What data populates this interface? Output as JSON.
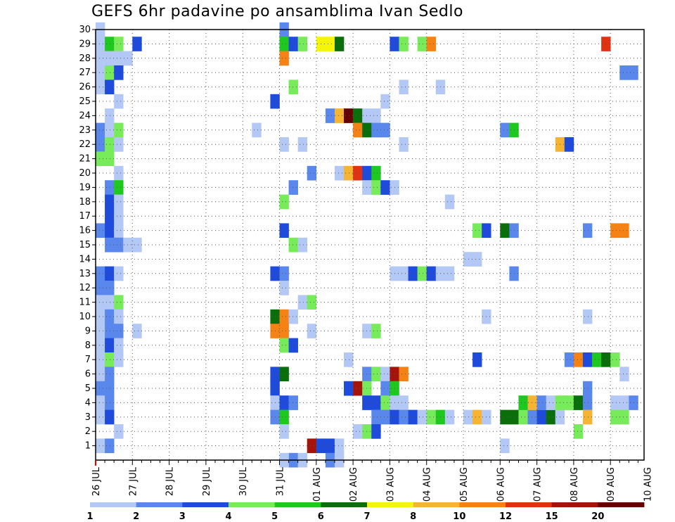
{
  "chart_data": {
    "type": "heatmap",
    "title": "GEFS 6hr padavine po ansamblima Ivan Sedlo",
    "x_tick_labels": [
      "26 JUL",
      "27 JUL",
      "28 JUL",
      "29 JUL",
      "30 JUL",
      "31 JUL",
      "01 AUG",
      "02 AUG",
      "03 AUG",
      "04 AUG",
      "05 AUG",
      "06 AUG",
      "07 AUG",
      "08 AUG",
      "09 AUG",
      "10 AUG"
    ],
    "x_range_days": [
      0,
      15.25
    ],
    "x_step_hours": 6,
    "y_ticks": [
      1,
      2,
      3,
      4,
      5,
      6,
      7,
      8,
      9,
      10,
      11,
      12,
      13,
      14,
      15,
      16,
      17,
      18,
      19,
      20,
      21,
      22,
      23,
      24,
      25,
      26,
      27,
      28,
      29,
      30
    ],
    "y_range": [
      0,
      30
    ],
    "grid": true,
    "colorbar": {
      "labels": [
        "1",
        "2",
        "3",
        "4",
        "5",
        "6",
        "7",
        "8",
        "10",
        "12",
        "15",
        "20"
      ],
      "bounds": [
        1,
        2,
        3,
        4,
        5,
        6,
        7,
        8,
        10,
        12,
        15,
        20
      ],
      "colors": [
        "#b4c8f5",
        "#5a87eb",
        "#1e4bdc",
        "#78eb5a",
        "#1ec81e",
        "#0a6e0a",
        "#f5f50a",
        "#f5b432",
        "#f58214",
        "#e13214",
        "#a5140a",
        "#640000"
      ]
    },
    "cells": [
      [
        0,
        30,
        0
      ],
      [
        0,
        29,
        0
      ],
      [
        1,
        29,
        4
      ],
      [
        2,
        29,
        3
      ],
      [
        3,
        28,
        0
      ],
      [
        4,
        29,
        2
      ],
      [
        0,
        28,
        0
      ],
      [
        1,
        28,
        0
      ],
      [
        2,
        28,
        0
      ],
      [
        0,
        27,
        0
      ],
      [
        1,
        27,
        3
      ],
      [
        2,
        27,
        2
      ],
      [
        0,
        26,
        0
      ],
      [
        1,
        26,
        2
      ],
      [
        2,
        25,
        0
      ],
      [
        1,
        24,
        0
      ],
      [
        0,
        23,
        1
      ],
      [
        1,
        23,
        0
      ],
      [
        2,
        23,
        3
      ],
      [
        0,
        22,
        1
      ],
      [
        1,
        22,
        3
      ],
      [
        2,
        22,
        0
      ],
      [
        0,
        21,
        3
      ],
      [
        1,
        21,
        3
      ],
      [
        2,
        20,
        0
      ],
      [
        1,
        19,
        1
      ],
      [
        2,
        19,
        4
      ],
      [
        1,
        18,
        2
      ],
      [
        2,
        18,
        0
      ],
      [
        1,
        17,
        2
      ],
      [
        2,
        17,
        0
      ],
      [
        0,
        16,
        1
      ],
      [
        1,
        16,
        2
      ],
      [
        2,
        16,
        0
      ],
      [
        1,
        15,
        1
      ],
      [
        2,
        15,
        1
      ],
      [
        3,
        15,
        0
      ],
      [
        4,
        15,
        0
      ],
      [
        0,
        13,
        1
      ],
      [
        1,
        13,
        2
      ],
      [
        2,
        13,
        0
      ],
      [
        0,
        12,
        1
      ],
      [
        1,
        12,
        1
      ],
      [
        0,
        11,
        0
      ],
      [
        1,
        11,
        0
      ],
      [
        2,
        11,
        3
      ],
      [
        0,
        10,
        0
      ],
      [
        1,
        10,
        1
      ],
      [
        2,
        10,
        0
      ],
      [
        0,
        9,
        0
      ],
      [
        1,
        9,
        1
      ],
      [
        2,
        9,
        1
      ],
      [
        4,
        9,
        0
      ],
      [
        0,
        8,
        0
      ],
      [
        1,
        8,
        2
      ],
      [
        2,
        8,
        0
      ],
      [
        0,
        7,
        0
      ],
      [
        1,
        7,
        3
      ],
      [
        2,
        7,
        0
      ],
      [
        0,
        6,
        0
      ],
      [
        1,
        6,
        1
      ],
      [
        0,
        5,
        1
      ],
      [
        1,
        5,
        1
      ],
      [
        0,
        4,
        0
      ],
      [
        1,
        4,
        1
      ],
      [
        0,
        3,
        0
      ],
      [
        1,
        3,
        2
      ],
      [
        2,
        2,
        0
      ],
      [
        0,
        1,
        0
      ],
      [
        1,
        1,
        1
      ],
      [
        20,
        30,
        1
      ],
      [
        20,
        29,
        4
      ],
      [
        21,
        29,
        2
      ],
      [
        22,
        29,
        3
      ],
      [
        24,
        29,
        6
      ],
      [
        25,
        29,
        6
      ],
      [
        26,
        29,
        5
      ],
      [
        20,
        28,
        8
      ],
      [
        21,
        26,
        3
      ],
      [
        19,
        25,
        2
      ],
      [
        17,
        23,
        0
      ],
      [
        20,
        22,
        0
      ],
      [
        22,
        22,
        0
      ],
      [
        20,
        18,
        3
      ],
      [
        21,
        19,
        1
      ],
      [
        20,
        16,
        2
      ],
      [
        21,
        15,
        3
      ],
      [
        22,
        15,
        0
      ],
      [
        19,
        13,
        2
      ],
      [
        20,
        13,
        1
      ],
      [
        20,
        12,
        0
      ],
      [
        22,
        11,
        0
      ],
      [
        23,
        11,
        3
      ],
      [
        19,
        10,
        5
      ],
      [
        20,
        10,
        8
      ],
      [
        21,
        10,
        0
      ],
      [
        19,
        9,
        8
      ],
      [
        20,
        9,
        8
      ],
      [
        20,
        8,
        3
      ],
      [
        21,
        8,
        2
      ],
      [
        19,
        6,
        2
      ],
      [
        20,
        6,
        5
      ],
      [
        19,
        5,
        2
      ],
      [
        19,
        4,
        0
      ],
      [
        20,
        4,
        2
      ],
      [
        21,
        4,
        1
      ],
      [
        19,
        3,
        1
      ],
      [
        20,
        3,
        4
      ],
      [
        20,
        2,
        0
      ],
      [
        21,
        0,
        1
      ],
      [
        22,
        0,
        0
      ],
      [
        25,
        24,
        1
      ],
      [
        26,
        24,
        7
      ],
      [
        27,
        24,
        11
      ],
      [
        28,
        24,
        5
      ],
      [
        29,
        24,
        0
      ],
      [
        30,
        24,
        0
      ],
      [
        28,
        23,
        8
      ],
      [
        29,
        23,
        5
      ],
      [
        30,
        23,
        1
      ],
      [
        31,
        23,
        1
      ],
      [
        23,
        20,
        1
      ],
      [
        26,
        20,
        0
      ],
      [
        27,
        20,
        7
      ],
      [
        28,
        20,
        9
      ],
      [
        29,
        20,
        2
      ],
      [
        30,
        20,
        4
      ],
      [
        29,
        19,
        0
      ],
      [
        30,
        19,
        3
      ],
      [
        31,
        19,
        2
      ],
      [
        32,
        19,
        0
      ],
      [
        23,
        9,
        0
      ],
      [
        29,
        9,
        0
      ],
      [
        30,
        9,
        3
      ],
      [
        27,
        7,
        0
      ],
      [
        29,
        6,
        1
      ],
      [
        30,
        6,
        3
      ],
      [
        31,
        6,
        0
      ],
      [
        32,
        6,
        10
      ],
      [
        33,
        6,
        8
      ],
      [
        27,
        5,
        2
      ],
      [
        28,
        5,
        10
      ],
      [
        29,
        5,
        3
      ],
      [
        31,
        5,
        1
      ],
      [
        32,
        5,
        4
      ],
      [
        29,
        4,
        2
      ],
      [
        30,
        4,
        2
      ],
      [
        31,
        4,
        3
      ],
      [
        32,
        4,
        0
      ],
      [
        33,
        4,
        0
      ],
      [
        30,
        3,
        1
      ],
      [
        31,
        3,
        1
      ],
      [
        32,
        3,
        2
      ],
      [
        33,
        3,
        1
      ],
      [
        34,
        3,
        2
      ],
      [
        28,
        2,
        0
      ],
      [
        29,
        2,
        3
      ],
      [
        30,
        2,
        2
      ],
      [
        23,
        1,
        10
      ],
      [
        24,
        1,
        2
      ],
      [
        25,
        1,
        2
      ],
      [
        26,
        1,
        0
      ],
      [
        32,
        29,
        2
      ],
      [
        33,
        29,
        3
      ],
      [
        35,
        29,
        3
      ],
      [
        36,
        29,
        8
      ],
      [
        33,
        26,
        0
      ],
      [
        31,
        25,
        0
      ],
      [
        33,
        22,
        0
      ],
      [
        37,
        26,
        0
      ],
      [
        38,
        18,
        0
      ],
      [
        32,
        13,
        0
      ],
      [
        33,
        13,
        0
      ],
      [
        34,
        13,
        2
      ],
      [
        35,
        13,
        3
      ],
      [
        36,
        13,
        2
      ],
      [
        37,
        13,
        0
      ],
      [
        38,
        13,
        0
      ],
      [
        35,
        3,
        0
      ],
      [
        36,
        3,
        3
      ],
      [
        37,
        3,
        4
      ],
      [
        38,
        3,
        0
      ],
      [
        40,
        3,
        0
      ],
      [
        41,
        3,
        7
      ],
      [
        42,
        3,
        0
      ],
      [
        41,
        16,
        3
      ],
      [
        42,
        16,
        2
      ],
      [
        40,
        14,
        0
      ],
      [
        41,
        14,
        0
      ],
      [
        42,
        10,
        0
      ],
      [
        41,
        7,
        2
      ],
      [
        44,
        16,
        5
      ],
      [
        45,
        16,
        1
      ],
      [
        44,
        23,
        1
      ],
      [
        45,
        23,
        4
      ],
      [
        45,
        13,
        1
      ],
      [
        44,
        3,
        5
      ],
      [
        45,
        3,
        5
      ],
      [
        46,
        3,
        3
      ],
      [
        47,
        3,
        1
      ],
      [
        48,
        3,
        2
      ],
      [
        49,
        3,
        5
      ],
      [
        50,
        3,
        0
      ],
      [
        46,
        4,
        4
      ],
      [
        47,
        4,
        7
      ],
      [
        48,
        4,
        1
      ],
      [
        49,
        4,
        0
      ],
      [
        50,
        4,
        3
      ],
      [
        51,
        4,
        3
      ],
      [
        52,
        4,
        5
      ],
      [
        53,
        4,
        1
      ],
      [
        44,
        1,
        0
      ],
      [
        50,
        22,
        7
      ],
      [
        51,
        22,
        2
      ],
      [
        51,
        7,
        1
      ],
      [
        52,
        7,
        8
      ],
      [
        53,
        7,
        2
      ],
      [
        54,
        7,
        4
      ],
      [
        55,
        7,
        5
      ],
      [
        56,
        7,
        3
      ],
      [
        53,
        16,
        1
      ],
      [
        53,
        10,
        0
      ],
      [
        53,
        5,
        1
      ],
      [
        53,
        3,
        7
      ],
      [
        52,
        2,
        3
      ],
      [
        55,
        29,
        9
      ],
      [
        57,
        27,
        1
      ],
      [
        58,
        27,
        1
      ],
      [
        56,
        16,
        8
      ],
      [
        57,
        16,
        8
      ],
      [
        57,
        6,
        0
      ],
      [
        56,
        4,
        0
      ],
      [
        57,
        4,
        0
      ],
      [
        58,
        4,
        1
      ],
      [
        56,
        3,
        3
      ],
      [
        57,
        3,
        3
      ],
      [
        25,
        0,
        1
      ],
      [
        26,
        0,
        0
      ],
      [
        20,
        0,
        0
      ]
    ]
  }
}
